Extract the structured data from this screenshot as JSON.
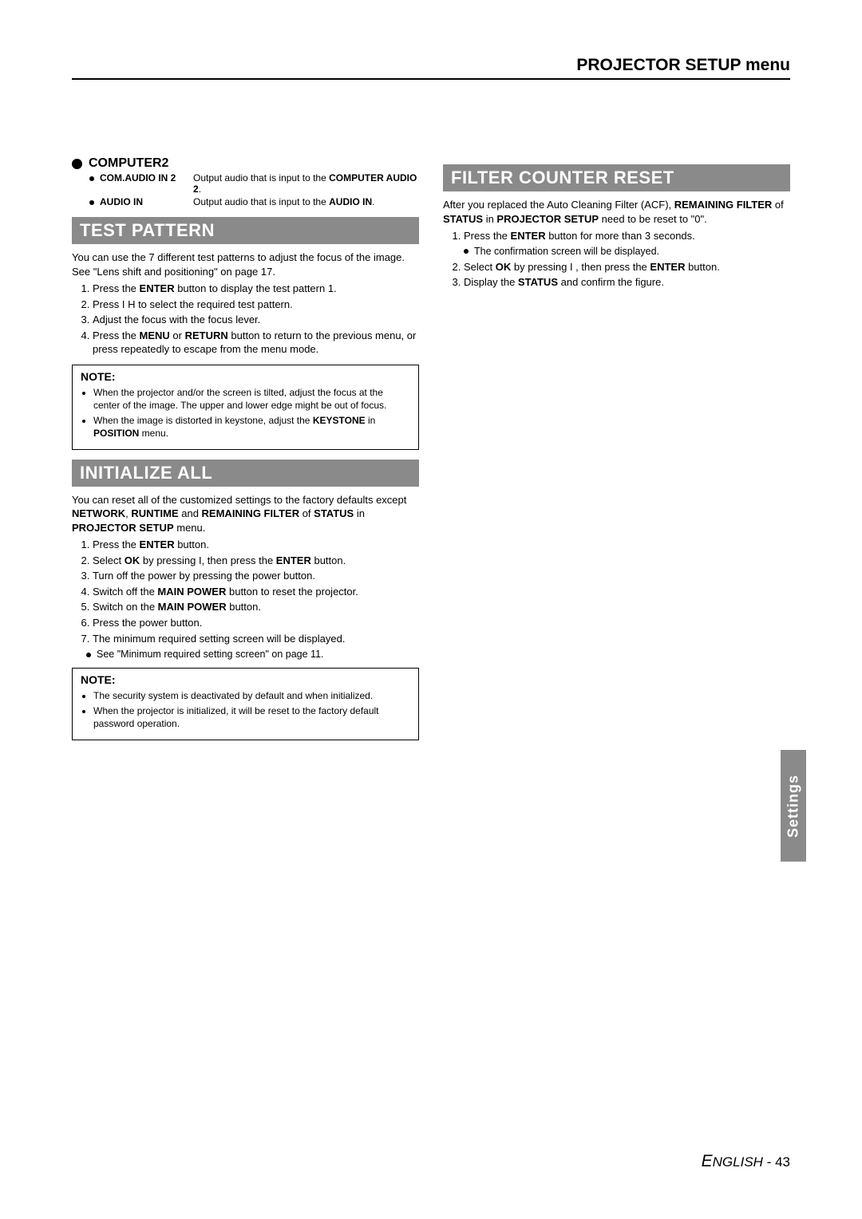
{
  "header": {
    "title": "PROJECTOR SETUP menu"
  },
  "sideTab": "Settings",
  "footer": {
    "lang": "ENGLISH",
    "page": "43"
  },
  "left": {
    "computer2": {
      "heading": "COMPUTER2",
      "rows": [
        {
          "label": "COM.AUDIO IN 2",
          "desc_pre": "Output audio that is input to the ",
          "desc_bold": "COMPUTER AUDIO 2",
          "desc_post": "."
        },
        {
          "label": "AUDIO IN",
          "desc_pre": "Output audio that is input to the ",
          "desc_bold": "AUDIO IN",
          "desc_post": "."
        }
      ]
    },
    "testPattern": {
      "bar": "TEST PATTERN",
      "intro": "You can use the 7 different test patterns to adjust the focus of the image. See \"Lens shift and positioning\" on page 17.",
      "steps": [
        "Press the <b>ENTER</b> button to display the test pattern 1.",
        "Press I   H  to select the required test pattern.",
        "Adjust the focus with the focus lever.",
        "Press the <b>MENU</b> or <b>RETURN</b> button to return to the previous menu, or press repeatedly to escape from the menu mode."
      ],
      "note": {
        "title": "NOTE:",
        "items": [
          "When the projector and/or the screen is tilted, adjust the focus at the center of the image. The upper and lower edge might be out of focus.",
          "When the image is distorted in keystone, adjust the <b>KEYSTONE</b> in <b>POSITION</b> menu."
        ]
      }
    },
    "initializeAll": {
      "bar": "INITIALIZE ALL",
      "intro": "You can reset all of the customized settings to the factory defaults except <b>NETWORK</b>, <b>RUNTIME</b> and <b>REMAINING FILTER</b> of <b>STATUS</b> in <b>PROJECTOR SETUP</b> menu.",
      "steps": [
        "Press the <b>ENTER</b> button.",
        "Select <b>OK</b> by pressing I, then press the   <b>ENTER</b> button.",
        "Turn off the power by pressing the power button.",
        "Switch off the <b>MAIN POWER</b> button to reset the projector.",
        "Switch on the <b>MAIN POWER</b> button.",
        "Press the power button.",
        "The minimum required setting screen will be displayed."
      ],
      "subnote": "See \"Minimum required setting screen\" on page 11.",
      "note": {
        "title": "NOTE:",
        "items": [
          "The security system is deactivated by default and when initialized.",
          "When the projector is initialized, it will be reset to the factory default password operation."
        ]
      }
    }
  },
  "right": {
    "filterCounterReset": {
      "bar": "FILTER COUNTER RESET",
      "intro": "After you replaced the Auto Cleaning Filter (ACF), <b>REMAINING FILTER</b> of <b>STATUS</b> in <b>PROJECTOR SETUP</b> need to be reset to \"0\".",
      "steps": [
        "Press the <b>ENTER</b> button for more than 3 seconds.",
        "Select <b>OK</b> by pressing I  , then press the <b>ENTER</b> button.",
        "Display the <b>STATUS</b> and confirm the figure."
      ],
      "subnote": "The confirmation screen will be displayed."
    }
  }
}
